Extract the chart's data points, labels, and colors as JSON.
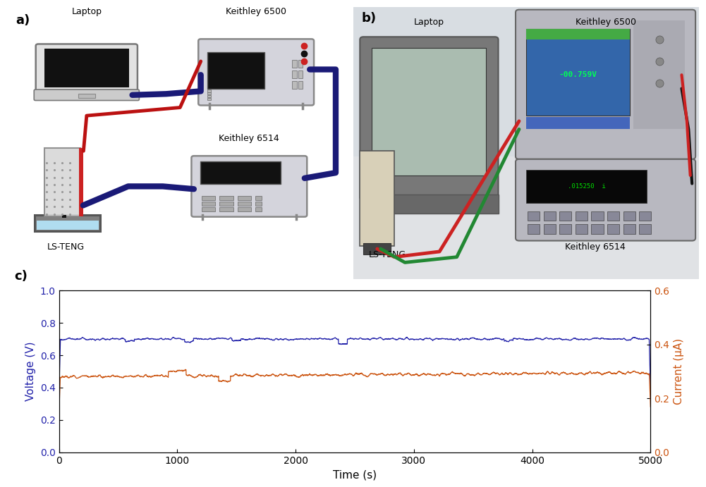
{
  "panel_a_bg": "#fce9e5",
  "panel_b_bg": "#dce8ef",
  "panel_c_bg": "#ffffff",
  "voltage_color": "#2222aa",
  "current_color": "#cc5511",
  "voltage_mean": 0.7,
  "current_mean": 0.28,
  "voltage_noise": 0.014,
  "current_noise": 0.011,
  "x_max": 5000,
  "voltage_ylim": [
    0.0,
    1.0
  ],
  "current_ylim": [
    0.0,
    0.6
  ],
  "xlabel": "Time (s)",
  "ylabel_left": "Voltage (V)",
  "ylabel_right": "Current (μA)",
  "xticks": [
    0,
    1000,
    2000,
    3000,
    4000,
    5000
  ],
  "yticks_left": [
    0.0,
    0.2,
    0.4,
    0.6,
    0.8,
    1.0
  ],
  "yticks_right": [
    0.0,
    0.2,
    0.4,
    0.6
  ],
  "label_a": "a)",
  "label_b": "b)",
  "label_c": "c)",
  "label_a_laptop": "Laptop",
  "label_a_k6500": "Keithley 6500",
  "label_a_k6514": "Keithley 6514",
  "label_a_lsteng": "LS-TENG",
  "label_b_laptop": "Laptop",
  "label_b_k6500": "Keithley 6500",
  "label_b_k6514": "Keithley 6514",
  "label_b_lsteng": "LS-TENG",
  "device_color": "#d4d4dc",
  "screen_color": "#0a0a0a",
  "cable_blue": "#1a1a77",
  "cable_red": "#bb1111",
  "cable_black": "#111111",
  "water_color": "#b0ddf0",
  "teng_bg": "#cccccc"
}
